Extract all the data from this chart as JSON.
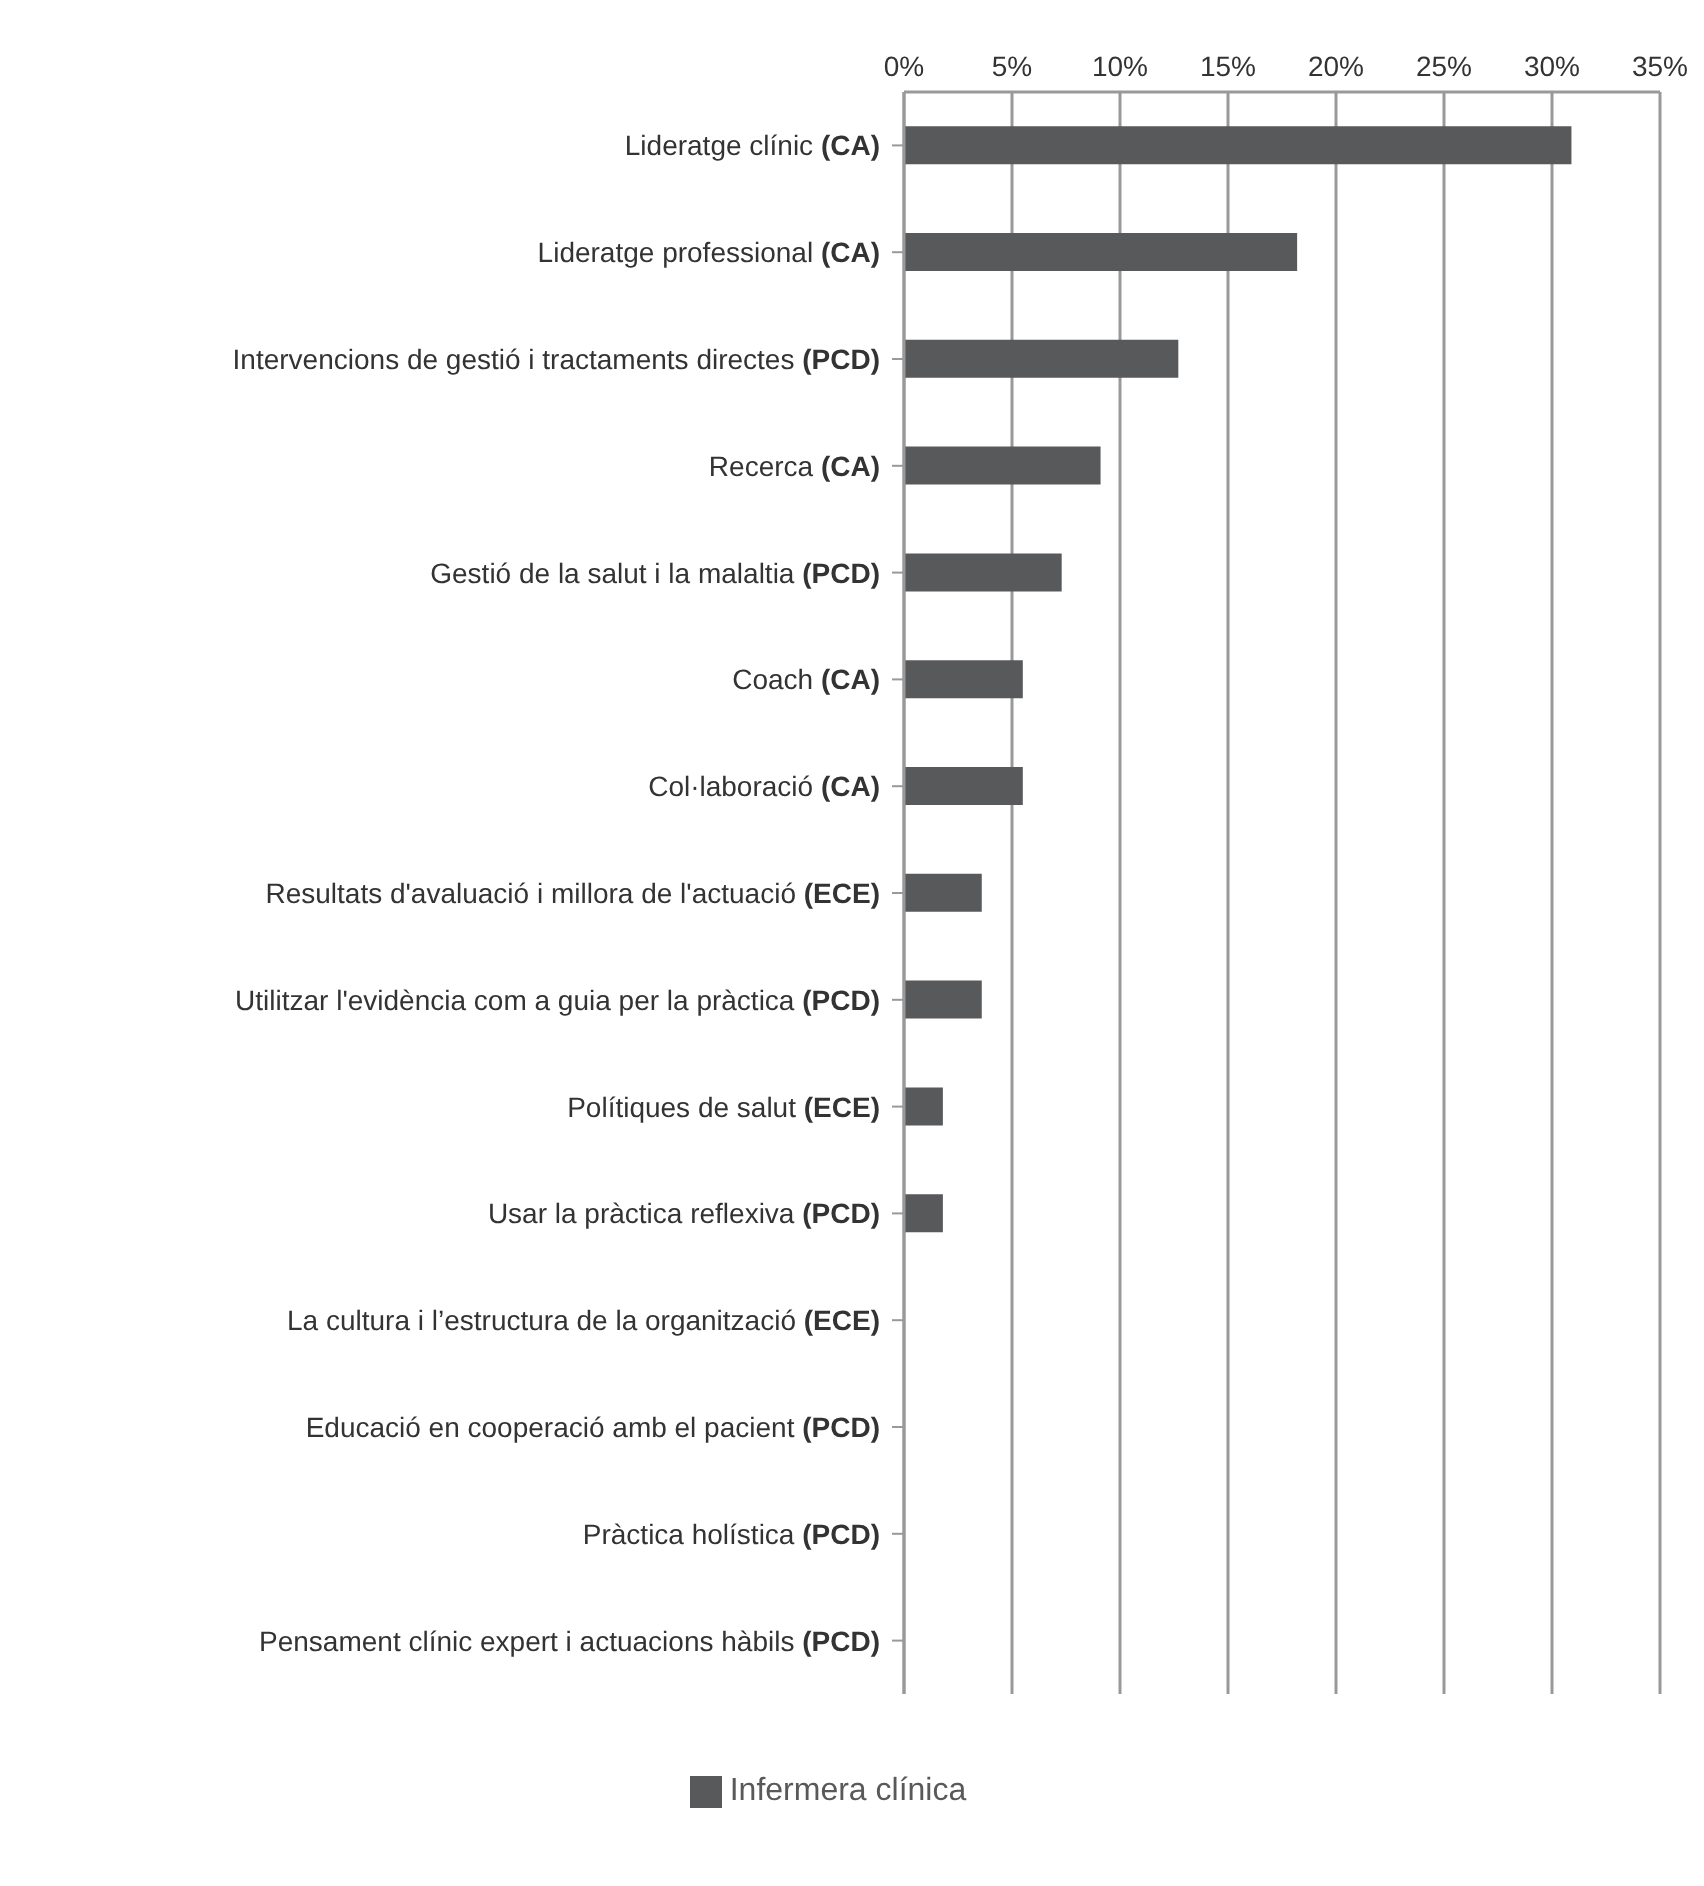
{
  "chart_data": {
    "type": "bar",
    "orientation": "horizontal",
    "categories": [
      "Lideratge clínic (CA)",
      "Lideratge professional (CA)",
      "Intervencions de gestió i tractaments directes (PCD)",
      "Recerca (CA)",
      "Gestió de la salut i la malaltia (PCD)",
      "Coach (CA)",
      "Col·laboració (CA)",
      "Resultats d'avaluació i millora de l'actuació (ECE)",
      "Utilitzar l'evidència com a guia per la pràctica (PCD)",
      "Polítiques de salut (ECE)",
      "Usar la pràctica reflexiva (PCD)",
      "La cultura i l’estructura de la organització (ECE)",
      "Educació en cooperació amb el pacient (PCD)",
      "Pràctica holística (PCD)",
      "Pensament clínic expert i actuacions hàbils (PCD)"
    ],
    "series": [
      {
        "name": "Infermera clínica",
        "color": "#58595b",
        "values": [
          30.9,
          18.2,
          12.7,
          9.1,
          7.3,
          5.5,
          5.5,
          3.6,
          3.6,
          1.8,
          1.8,
          0,
          0,
          0,
          0
        ]
      }
    ],
    "xlim": [
      0,
      35
    ],
    "xticks": [
      {
        "value": 0,
        "label": "0%"
      },
      {
        "value": 5,
        "label": "5%"
      },
      {
        "value": 10,
        "label": "10%"
      },
      {
        "value": 15,
        "label": "15%"
      },
      {
        "value": 20,
        "label": "20%"
      },
      {
        "value": 25,
        "label": "25%"
      },
      {
        "value": 30,
        "label": "30%"
      },
      {
        "value": 35,
        "label": "35%"
      }
    ],
    "grid": "x",
    "legend": "bottom"
  }
}
